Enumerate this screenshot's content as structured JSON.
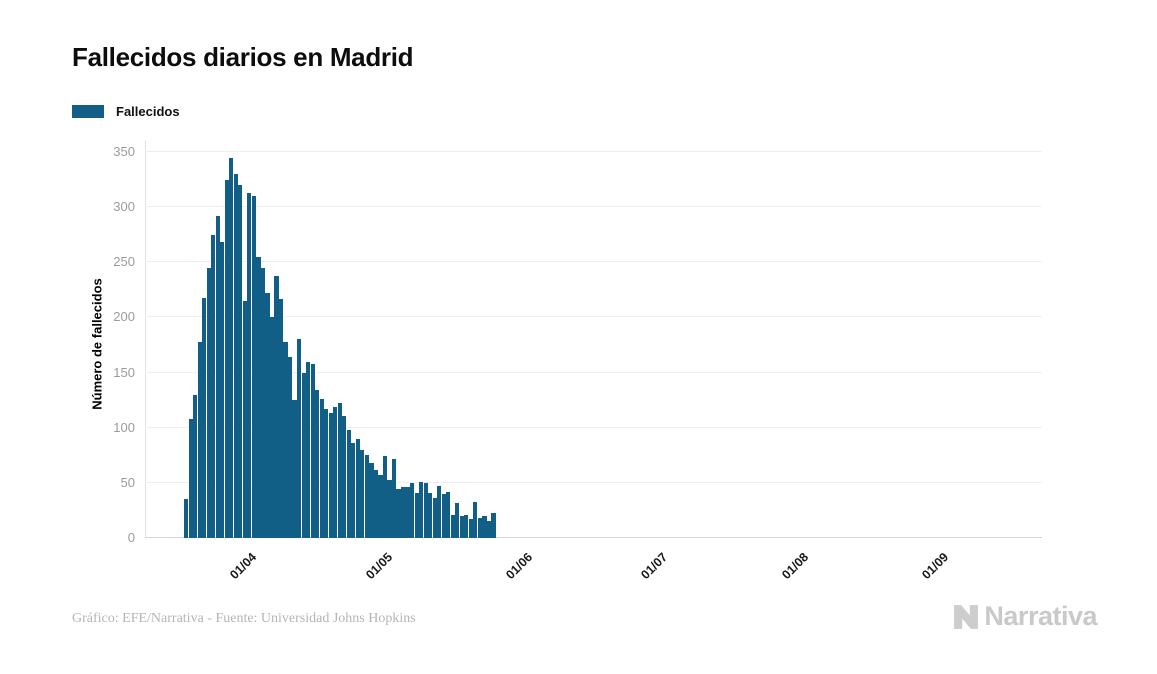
{
  "title": "Fallecidos diarios en Madrid",
  "legend": {
    "label": "Fallecidos",
    "swatch_color": "#115e87"
  },
  "footer": {
    "credit": "Gráfico: EFE/Narrativa - Fuente: Universidad Johns Hopkins"
  },
  "branding": {
    "logo_text": "Narrativa",
    "logo_color": "#c9c9c9"
  },
  "chart_data": {
    "type": "bar",
    "title": "Fallecidos diarios en Madrid",
    "series_name": "Fallecidos",
    "xlabel": "",
    "ylabel": "Número de fallecidos",
    "bar_color": "#115e87",
    "ylim": [
      0,
      350
    ],
    "yticks": [
      0,
      50,
      100,
      150,
      200,
      250,
      300,
      350
    ],
    "xticks": [
      "01/04",
      "01/05",
      "01/06",
      "01/07",
      "01/08",
      "01/09"
    ],
    "grid": true,
    "legend_position": "top-left",
    "dates": [
      "18/03",
      "19/03",
      "20/03",
      "21/03",
      "22/03",
      "23/03",
      "24/03",
      "25/03",
      "26/03",
      "27/03",
      "28/03",
      "29/03",
      "30/03",
      "31/03",
      "01/04",
      "02/04",
      "03/04",
      "04/04",
      "05/04",
      "06/04",
      "07/04",
      "08/04",
      "09/04",
      "10/04",
      "11/04",
      "12/04",
      "13/04",
      "14/04",
      "15/04",
      "16/04",
      "17/04",
      "18/04",
      "19/04",
      "20/04",
      "21/04",
      "22/04",
      "23/04",
      "24/04",
      "25/04",
      "26/04",
      "27/04",
      "28/04",
      "29/04",
      "30/04",
      "01/05",
      "02/05",
      "03/05",
      "04/05",
      "05/05",
      "06/05",
      "07/05",
      "08/05",
      "09/05",
      "10/05",
      "11/05",
      "12/05",
      "13/05",
      "14/05",
      "15/05",
      "16/05",
      "17/05",
      "18/05",
      "19/05",
      "20/05",
      "21/05",
      "22/05",
      "23/05",
      "24/05",
      "25/05"
    ],
    "values": [
      35,
      108,
      130,
      178,
      218,
      245,
      275,
      292,
      268,
      325,
      345,
      330,
      320,
      215,
      313,
      310,
      255,
      245,
      222,
      200,
      238,
      217,
      178,
      164,
      125,
      180,
      150,
      160,
      158,
      134,
      126,
      117,
      113,
      119,
      122,
      111,
      98,
      86,
      90,
      80,
      75,
      68,
      62,
      57,
      74,
      53,
      72,
      44,
      46,
      46,
      50,
      41,
      51,
      50,
      41,
      36,
      47,
      40,
      42,
      21,
      32,
      20,
      21,
      17,
      33,
      18,
      20,
      15,
      23
    ]
  }
}
